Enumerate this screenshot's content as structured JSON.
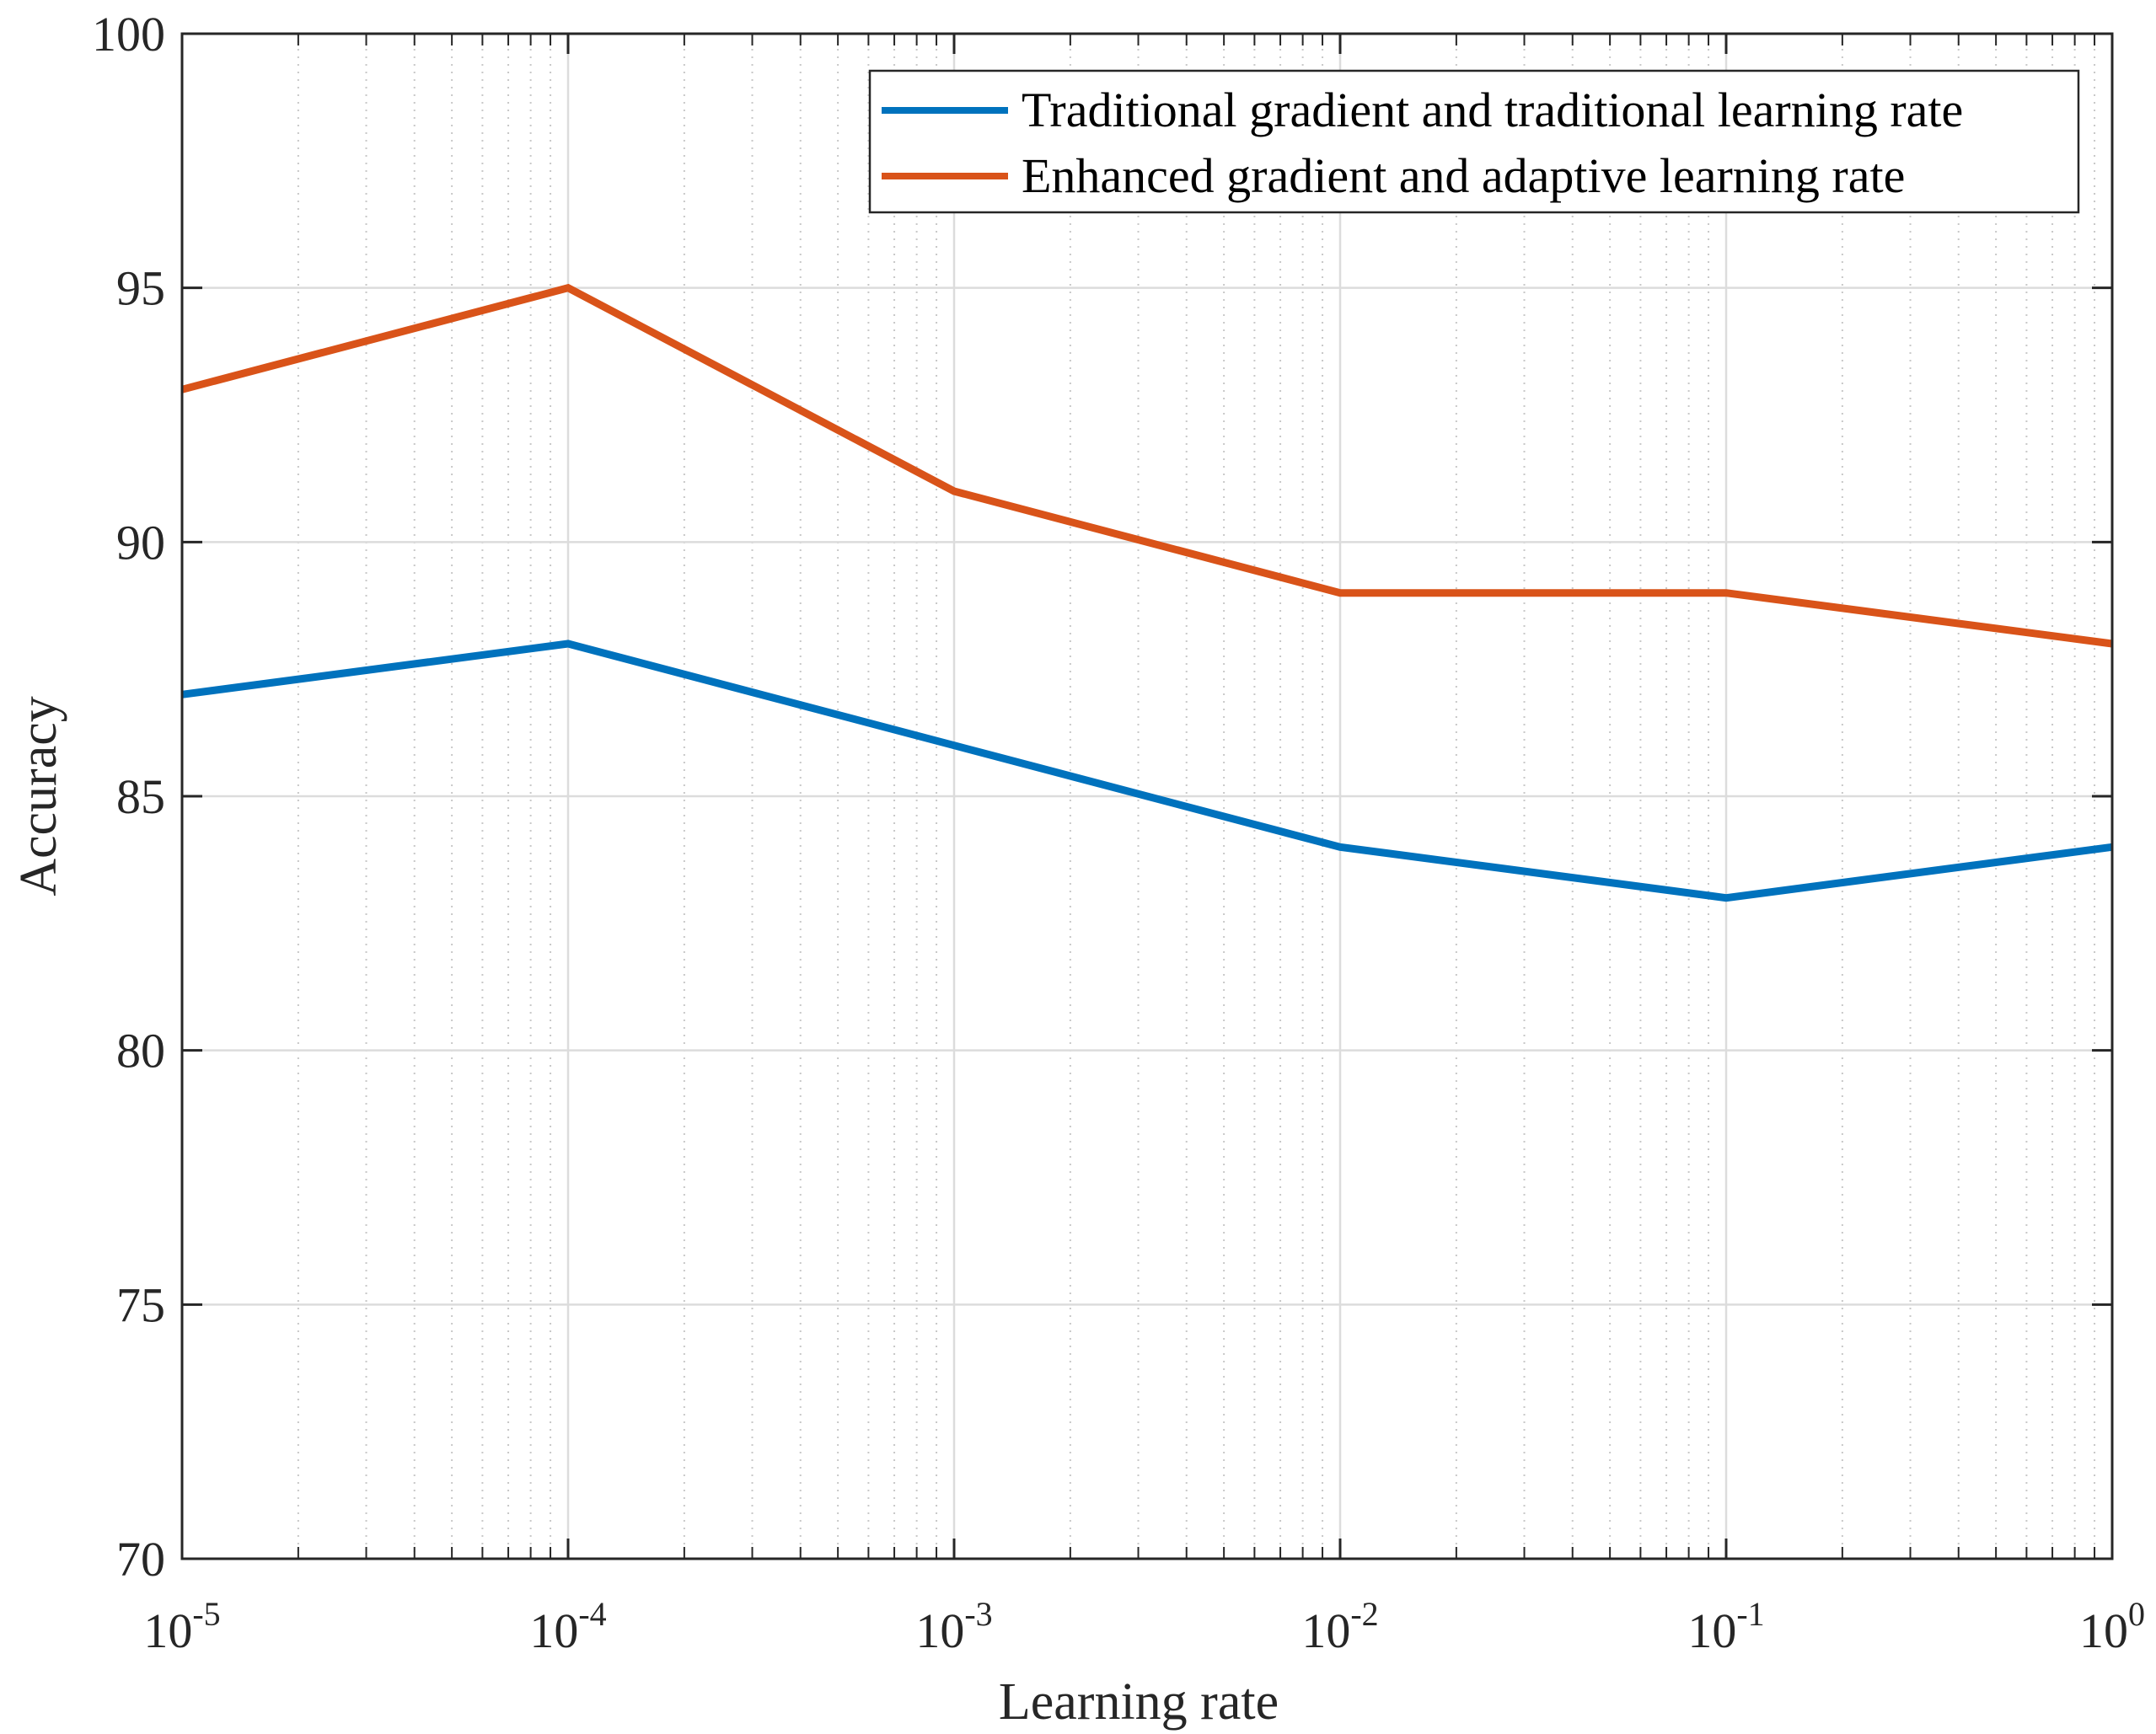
{
  "chart_data": {
    "type": "line",
    "title": "",
    "xlabel": "Learning rate",
    "ylabel": "Accuracy",
    "xscale": "log",
    "xlim": [
      1e-05,
      1
    ],
    "ylim": [
      70,
      100
    ],
    "x": [
      1e-05,
      0.0001,
      0.001,
      0.01,
      0.1,
      1
    ],
    "x_ticks": [
      {
        "value": 1e-05,
        "base": "10",
        "exp": "-5"
      },
      {
        "value": 0.0001,
        "base": "10",
        "exp": "-4"
      },
      {
        "value": 0.001,
        "base": "10",
        "exp": "-3"
      },
      {
        "value": 0.01,
        "base": "10",
        "exp": "-2"
      },
      {
        "value": 0.1,
        "base": "10",
        "exp": "-1"
      },
      {
        "value": 1,
        "base": "10",
        "exp": "0"
      }
    ],
    "y_ticks": [
      70,
      75,
      80,
      85,
      90,
      95,
      100
    ],
    "grid": true,
    "minor_grid": true,
    "legend_position": "top-right",
    "series": [
      {
        "name": "Traditional gradient and traditional learning rate",
        "color": "#0072BD",
        "values": [
          87,
          88,
          86,
          84,
          83,
          84
        ]
      },
      {
        "name": "Enhanced gradient and adaptive learning rate",
        "color": "#D95319",
        "values": [
          93,
          95,
          91,
          89,
          89,
          88
        ]
      }
    ]
  }
}
